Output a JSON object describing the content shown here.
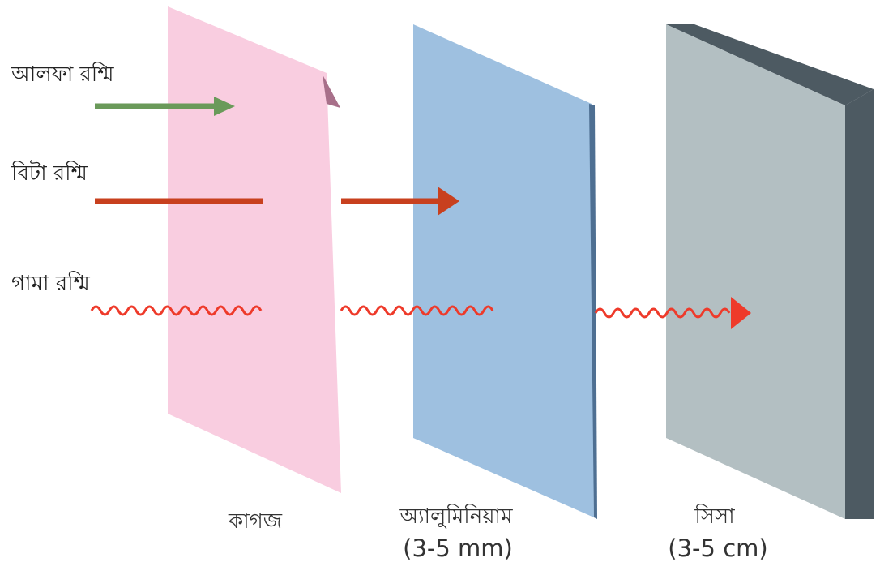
{
  "rays": [
    {
      "id": "alpha",
      "label": "আলফা রশ্মি",
      "color": "#6a9a5a"
    },
    {
      "id": "beta",
      "label": "বিটা রশ্মি",
      "color": "#c8401e"
    },
    {
      "id": "gamma",
      "label": "গামা রশ্মি",
      "color": "#ee3a2a"
    }
  ],
  "barriers": [
    {
      "id": "paper",
      "label": "কাগজ",
      "thickness": "",
      "color": "#f9cde0"
    },
    {
      "id": "aluminium",
      "label": "অ্যালুমিনিয়াম",
      "thickness": "(3-5 mm)",
      "color": "#9ec0e0"
    },
    {
      "id": "lead",
      "label": "সিসা",
      "thickness": "(3-5 cm)",
      "color": "#b3bfc2"
    }
  ]
}
